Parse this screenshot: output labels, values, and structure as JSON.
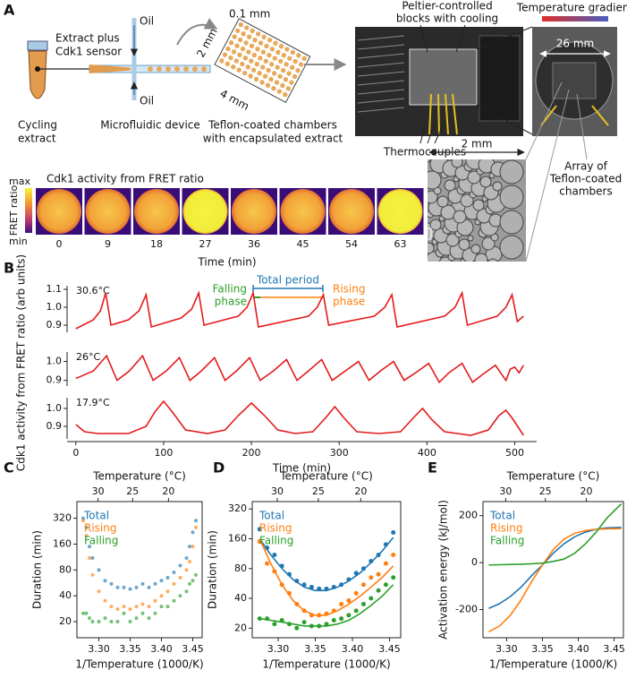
{
  "panels": [
    "A",
    "B",
    "C",
    "D",
    "E"
  ],
  "panel_a": {
    "tube_label": [
      "Extract plus",
      "Cdk1 sensor"
    ],
    "oil": [
      "Oil",
      "Oil"
    ],
    "chamber_dims": [
      "0.1 mm",
      "2 mm",
      "4 mm"
    ],
    "captions": {
      "extract": [
        "Cycling",
        "extract"
      ],
      "device": "Microfluidic device",
      "chambers": [
        "Teflon-coated chambers",
        "with encapsulated extract"
      ]
    },
    "peltier": [
      "Peltier-controlled",
      "blocks with cooling"
    ],
    "thermocouples": "Thermocouples",
    "gradient": "Temperature gradient",
    "width_26": "26 mm",
    "array": [
      "Array of",
      "Teflon-coated",
      "chambers"
    ],
    "scale_2mm": "2 mm",
    "heatmap": {
      "title": "Cdk1 activity from FRET ratio",
      "max": "max",
      "min": "min",
      "colorbar_label": "FRET ratio",
      "times": [
        0,
        9,
        18,
        27,
        36,
        45,
        54,
        63
      ],
      "xlabel": "Time (min)"
    }
  },
  "chart_data": [
    {
      "type": "line",
      "label": "30.6°C",
      "annotations": {
        "falling": [
          "Falling",
          "phase"
        ],
        "total": "Total period",
        "rising": [
          "Rising",
          "phase"
        ]
      },
      "x": [
        0,
        20,
        28,
        34,
        40,
        60,
        72,
        80,
        86,
        120,
        132,
        140,
        146,
        185,
        195,
        202,
        208,
        265,
        275,
        282,
        288,
        340,
        352,
        360,
        366,
        420,
        432,
        440,
        446,
        480,
        490,
        497,
        503,
        510
      ],
      "series": [
        {
          "color": "#e41a1c",
          "values": [
            0.88,
            0.93,
            0.98,
            1.08,
            0.9,
            0.93,
            0.98,
            1.07,
            0.89,
            0.94,
            0.99,
            1.08,
            0.9,
            0.95,
            1.0,
            1.08,
            0.89,
            0.95,
            1.0,
            1.07,
            0.9,
            0.95,
            1.0,
            1.07,
            0.89,
            0.95,
            1.0,
            1.08,
            0.9,
            0.95,
            1.0,
            1.07,
            0.92,
            0.95
          ]
        }
      ],
      "xlim": [
        -10,
        525
      ],
      "ylim": [
        0.86,
        1.12
      ],
      "yticks": [
        0.9,
        {
          "value": 1,
          "label": "1.0"
        },
        1.1
      ]
    },
    {
      "type": "line",
      "label": "26°C",
      "ylabel": "Cdk1 activity from FRET ratio (arb units)",
      "x": [
        0,
        20,
        35,
        47,
        61,
        76,
        88,
        103,
        118,
        130,
        143,
        158,
        170,
        183,
        198,
        210,
        225,
        240,
        252,
        265,
        280,
        292,
        307,
        322,
        334,
        347,
        362,
        374,
        387,
        402,
        414,
        425,
        440,
        452,
        463,
        478,
        490,
        495,
        500,
        505,
        510
      ],
      "series": [
        {
          "color": "#e41a1c",
          "values": [
            0.91,
            0.95,
            1.03,
            0.9,
            0.95,
            1.03,
            0.9,
            0.95,
            1.02,
            0.9,
            0.95,
            1.02,
            0.9,
            0.95,
            1.02,
            0.9,
            0.95,
            1.01,
            0.9,
            0.95,
            1.01,
            0.9,
            0.95,
            1.0,
            0.9,
            0.95,
            1.0,
            0.9,
            0.94,
            0.99,
            0.89,
            0.94,
            0.99,
            0.89,
            0.93,
            0.98,
            0.9,
            0.96,
            0.97,
            0.94,
            0.98
          ]
        }
      ],
      "xlim": [
        -10,
        525
      ],
      "ylim": [
        0.87,
        1.05
      ],
      "yticks": [
        0.9,
        {
          "value": 1,
          "label": "1.0"
        }
      ]
    },
    {
      "type": "line",
      "label": "17.9°C",
      "xlabel": "Time (min)",
      "x": [
        0,
        10,
        25,
        60,
        80,
        90,
        100,
        110,
        125,
        150,
        170,
        185,
        200,
        215,
        230,
        250,
        270,
        285,
        295,
        305,
        320,
        345,
        370,
        385,
        395,
        405,
        420,
        450,
        470,
        482,
        490,
        498,
        510
      ],
      "series": [
        {
          "color": "#e41a1c",
          "values": [
            0.91,
            0.87,
            0.86,
            0.86,
            0.9,
            0.98,
            1.04,
            0.98,
            0.88,
            0.86,
            0.88,
            0.96,
            1.03,
            0.96,
            0.88,
            0.86,
            0.87,
            0.95,
            1.01,
            0.95,
            0.87,
            0.86,
            0.87,
            0.95,
            1.0,
            0.94,
            0.87,
            0.85,
            0.88,
            0.96,
            0.99,
            0.94,
            0.85
          ]
        }
      ],
      "xlim": [
        -10,
        525
      ],
      "ylim": [
        0.83,
        1.06
      ],
      "yticks": [
        0.9,
        {
          "value": 1,
          "label": "1.0"
        }
      ],
      "xticks": [
        0,
        100,
        200,
        300,
        400,
        500
      ]
    },
    {
      "type": "scatter",
      "ylabel": "Duration (min)",
      "xlabel": "1/Temperature (1000/K)",
      "x2label": "Temperature (°C)",
      "yscale": "log",
      "x": [
        3.275,
        3.28,
        3.285,
        3.29,
        3.3,
        3.31,
        3.32,
        3.33,
        3.34,
        3.35,
        3.36,
        3.37,
        3.38,
        3.39,
        3.4,
        3.41,
        3.42,
        3.43,
        3.44,
        3.445,
        3.45,
        3.455
      ],
      "series": [
        {
          "name": "Total",
          "color": "#1f77b4",
          "values": [
            320,
            250,
            150,
            110,
            80,
            60,
            55,
            50,
            50,
            48,
            50,
            55,
            50,
            55,
            60,
            65,
            75,
            90,
            110,
            150,
            220,
            300
          ]
        },
        {
          "name": "Rising",
          "color": "#ff7f0e",
          "values": [
            300,
            200,
            110,
            70,
            45,
            35,
            30,
            28,
            30,
            28,
            30,
            32,
            30,
            35,
            40,
            45,
            55,
            65,
            80,
            100,
            150,
            250
          ]
        },
        {
          "name": "Falling",
          "color": "#2ca02c",
          "values": [
            25,
            25,
            22,
            20,
            20,
            22,
            20,
            20,
            25,
            20,
            22,
            25,
            22,
            25,
            30,
            30,
            35,
            40,
            45,
            55,
            60,
            70
          ]
        }
      ],
      "xlim": [
        3.265,
        3.465
      ],
      "ylim": [
        13,
        500
      ],
      "yticks": [
        20,
        40,
        80,
        160,
        320
      ],
      "xticks": [
        {
          "value": 3.3,
          "label": "3.30"
        },
        {
          "value": 3.35,
          "label": "3.35"
        },
        {
          "value": 3.4,
          "label": "3.40"
        },
        {
          "value": 3.45,
          "label": "3.45"
        }
      ],
      "x2ticks": [
        30,
        25,
        20
      ]
    },
    {
      "type": "scatter",
      "ylabel": "Duration (min)",
      "xlabel": "1/Temperature (1000/K)",
      "x2label": "Temperature (°C)",
      "yscale": "log",
      "x": [
        3.275,
        3.285,
        3.295,
        3.305,
        3.315,
        3.325,
        3.335,
        3.345,
        3.355,
        3.365,
        3.375,
        3.385,
        3.395,
        3.405,
        3.415,
        3.425,
        3.435,
        3.445,
        3.455
      ],
      "fit_x": [
        3.275,
        3.29,
        3.305,
        3.32,
        3.335,
        3.35,
        3.365,
        3.38,
        3.395,
        3.41,
        3.425,
        3.44,
        3.455
      ],
      "series": [
        {
          "name": "Total",
          "color": "#1f77b4",
          "values": [
            200,
            130,
            110,
            85,
            70,
            60,
            55,
            52,
            50,
            50,
            52,
            55,
            62,
            72,
            80,
            95,
            110,
            140,
            185
          ],
          "fit_values": [
            160,
            110,
            80,
            62,
            52,
            48,
            48,
            52,
            60,
            72,
            92,
            120,
            165
          ]
        },
        {
          "name": "Rising",
          "color": "#ff7f0e",
          "values": [
            150,
            90,
            75,
            55,
            45,
            35,
            30,
            27,
            27,
            28,
            30,
            35,
            38,
            45,
            55,
            65,
            70,
            90,
            110
          ],
          "fit_values": [
            160,
            90,
            55,
            38,
            30,
            27,
            27,
            30,
            35,
            42,
            52,
            65,
            85
          ]
        },
        {
          "name": "Falling",
          "color": "#2ca02c",
          "values": [
            25,
            25,
            22,
            24,
            22,
            20,
            23,
            21,
            21,
            22,
            24,
            25,
            27,
            30,
            35,
            40,
            48,
            55,
            65
          ],
          "fit_values": [
            25,
            24,
            23,
            22,
            21,
            21,
            21,
            22,
            24,
            28,
            34,
            42,
            55
          ]
        }
      ],
      "xlim": [
        3.265,
        3.465
      ],
      "ylim": [
        16,
        380
      ],
      "yticks": [
        20,
        40,
        80,
        160,
        320
      ],
      "xticks": [
        {
          "value": 3.3,
          "label": "3.30"
        },
        {
          "value": 3.35,
          "label": "3.35"
        },
        {
          "value": 3.4,
          "label": "3.40"
        },
        {
          "value": 3.45,
          "label": "3.45"
        }
      ],
      "x2ticks": [
        30,
        25,
        20
      ]
    },
    {
      "type": "line",
      "ylabel": "Activation energy (kJ/mol)",
      "xlabel": "1/Temperature (1000/K)",
      "x2label": "Temperature (°C)",
      "x": [
        3.275,
        3.29,
        3.305,
        3.32,
        3.335,
        3.35,
        3.365,
        3.38,
        3.395,
        3.41,
        3.425,
        3.44,
        3.46
      ],
      "series": [
        {
          "name": "Total",
          "color": "#1f77b4",
          "values": [
            -195,
            -175,
            -145,
            -105,
            -55,
            -10,
            40,
            80,
            110,
            130,
            142,
            148,
            150
          ]
        },
        {
          "name": "Rising",
          "color": "#ff7f0e",
          "values": [
            -295,
            -270,
            -225,
            -160,
            -80,
            -10,
            55,
            100,
            125,
            137,
            142,
            144,
            145
          ]
        },
        {
          "name": "Falling",
          "color": "#2ca02c",
          "values": [
            -10,
            -9,
            -8,
            -7,
            -5,
            -2,
            5,
            15,
            40,
            80,
            130,
            190,
            250
          ]
        }
      ],
      "xlim": [
        3.267,
        3.463
      ],
      "ylim": [
        -320,
        260
      ],
      "yticks": [
        -200,
        0,
        200
      ],
      "xticks": [
        {
          "value": 3.3,
          "label": "3.30"
        },
        {
          "value": 3.35,
          "label": "3.35"
        },
        {
          "value": 3.4,
          "label": "3.40"
        },
        {
          "value": 3.45,
          "label": "3.45"
        }
      ],
      "x2ticks": [
        30,
        25,
        20
      ]
    }
  ]
}
